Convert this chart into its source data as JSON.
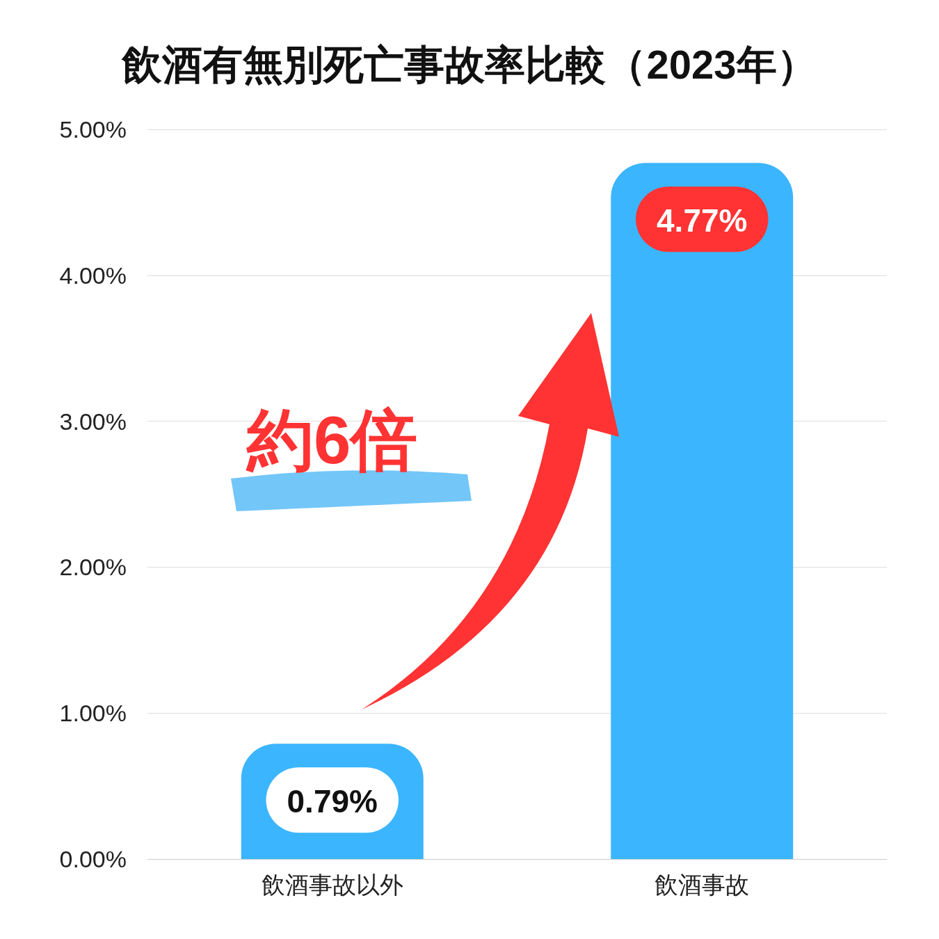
{
  "chart_data": {
    "type": "bar",
    "title": "飲酒有無別死亡事故率比較（2023年）",
    "categories": [
      "飲酒事故以外",
      "飲酒事故"
    ],
    "values": [
      0.79,
      4.77
    ],
    "color": "#3bb5fd",
    "value_labels": [
      "0.79%",
      "4.77%"
    ],
    "ylim": [
      0,
      5
    ],
    "yticks": [
      {
        "value": 0,
        "label": "0.00%"
      },
      {
        "value": 1,
        "label": "1.00%"
      },
      {
        "value": 2,
        "label": "2.00%"
      },
      {
        "value": 3,
        "label": "3.00%"
      },
      {
        "value": 4,
        "label": "4.00%"
      },
      {
        "value": 5,
        "label": "5.00%"
      }
    ],
    "grid": "y",
    "annotations": [
      "約6倍"
    ]
  }
}
